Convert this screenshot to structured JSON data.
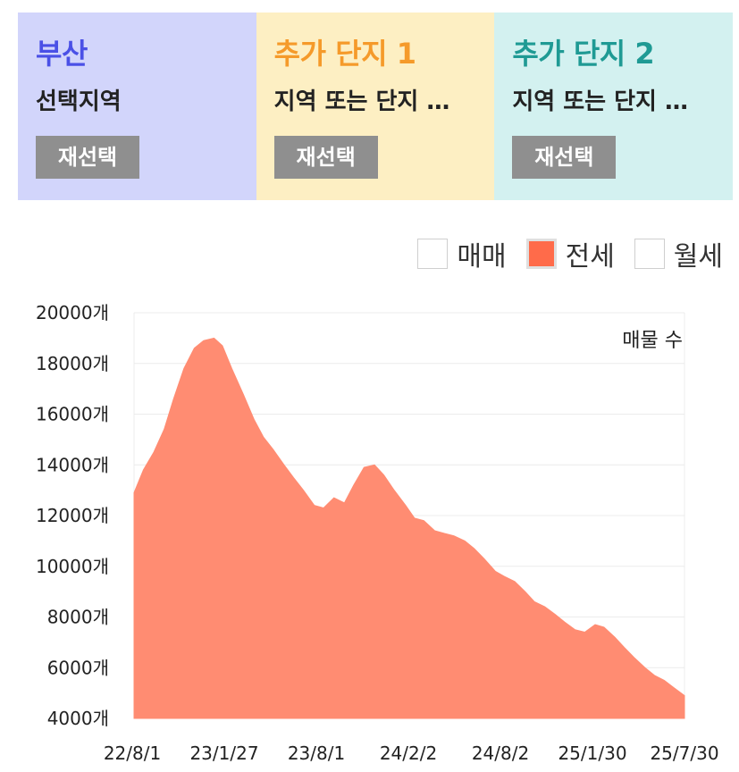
{
  "cards": [
    {
      "title": "부산",
      "subtitle": "선택지역",
      "button": "재선택",
      "bg": "#d2d5fb",
      "title_color": "#4a50e6"
    },
    {
      "title": "추가 단지 1",
      "subtitle": "지역 또는 단지 …",
      "button": "재선택",
      "bg": "#fdefc3",
      "title_color": "#f59a2a"
    },
    {
      "title": "추가 단지 2",
      "subtitle": "지역 또는 단지 …",
      "button": "재선택",
      "bg": "#d3f1f0",
      "title_color": "#1f9a94"
    }
  ],
  "legend": [
    {
      "label": "매매",
      "checked": false,
      "color": "#ffffff"
    },
    {
      "label": "전세",
      "checked": true,
      "color": "#ff6b4a"
    },
    {
      "label": "월세",
      "checked": false,
      "color": "#ffffff"
    }
  ],
  "chart_data": {
    "type": "area",
    "annotation": "매물 수",
    "fill_color": "#ff8c72",
    "y_unit": "개",
    "ylim": [
      4000,
      20000
    ],
    "y_ticks": [
      4000,
      6000,
      8000,
      10000,
      12000,
      14000,
      16000,
      18000,
      20000
    ],
    "x_tick_labels": [
      "22/8/1",
      "23/1/27",
      "23/8/1",
      "24/2/2",
      "24/8/2",
      "25/1/30",
      "25/7/30"
    ],
    "x_start": "2022-08-01",
    "x_end": "2025-08-20",
    "grid": true,
    "series": [
      {
        "x": [
          "2022-08-01",
          "2022-08-20",
          "2022-09-10",
          "2022-10-01",
          "2022-10-20",
          "2022-11-10",
          "2022-12-01",
          "2022-12-20",
          "2023-01-10",
          "2023-01-27",
          "2023-02-15",
          "2023-03-10",
          "2023-04-01",
          "2023-04-20",
          "2023-05-10",
          "2023-06-01",
          "2023-06-20",
          "2023-07-10",
          "2023-08-01",
          "2023-08-20",
          "2023-09-10",
          "2023-10-01",
          "2023-10-20",
          "2023-11-10",
          "2023-12-01",
          "2023-12-20",
          "2024-01-10",
          "2024-02-02",
          "2024-02-20",
          "2024-03-10",
          "2024-04-01",
          "2024-04-20",
          "2024-05-10",
          "2024-06-01",
          "2024-06-20",
          "2024-07-10",
          "2024-08-02",
          "2024-08-20",
          "2024-09-10",
          "2024-10-01",
          "2024-10-20",
          "2024-11-10",
          "2024-12-01",
          "2024-12-20",
          "2025-01-10",
          "2025-01-30",
          "2025-02-20",
          "2025-03-10",
          "2025-04-01",
          "2025-04-20",
          "2025-05-10",
          "2025-06-01",
          "2025-06-20",
          "2025-07-10",
          "2025-07-30",
          "2025-08-20"
        ],
        "values": [
          12900,
          13800,
          14500,
          15400,
          16600,
          17800,
          18600,
          18900,
          19000,
          18700,
          17800,
          16800,
          15800,
          15100,
          14600,
          14000,
          13500,
          13000,
          12400,
          12300,
          12700,
          12500,
          13200,
          13900,
          14000,
          13600,
          13000,
          12400,
          11900,
          11800,
          11400,
          11300,
          11200,
          11000,
          10700,
          10300,
          9800,
          9600,
          9400,
          9000,
          8600,
          8400,
          8100,
          7800,
          7500,
          7400,
          7700,
          7600,
          7200,
          6800,
          6400,
          6000,
          5700,
          5500,
          5200,
          4900
        ]
      }
    ]
  }
}
